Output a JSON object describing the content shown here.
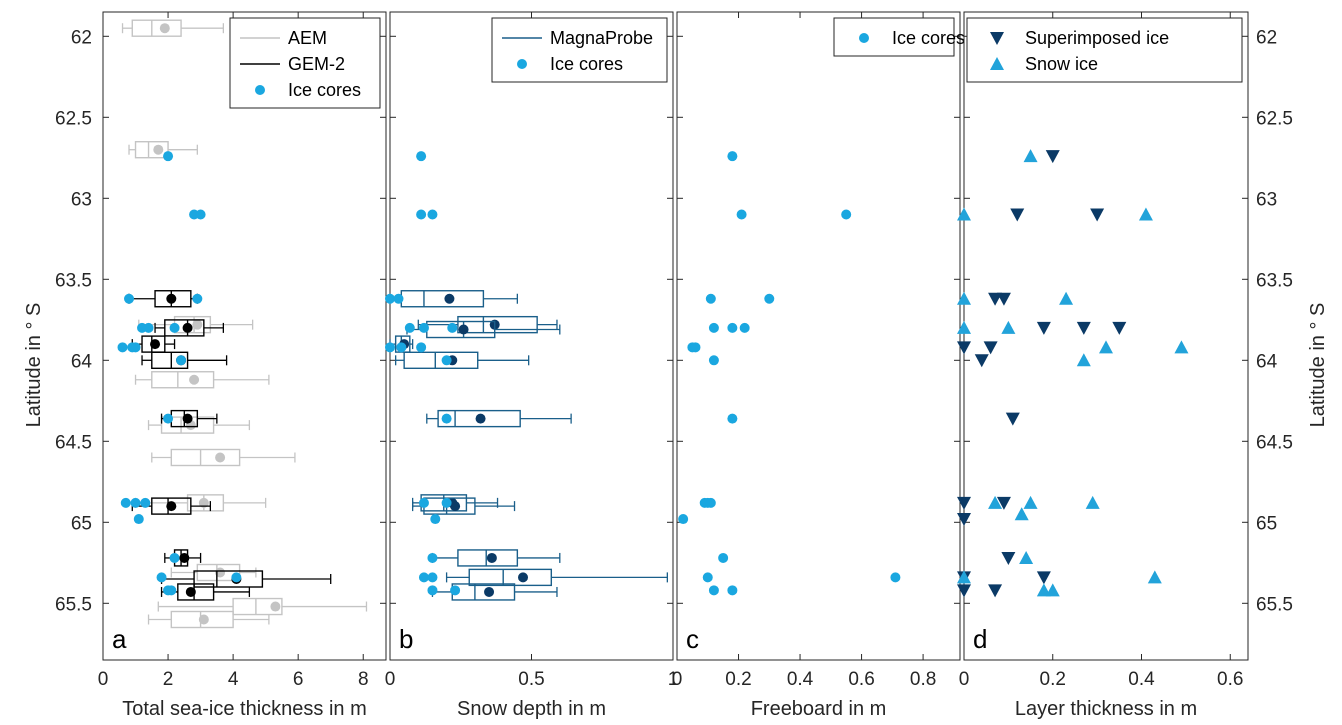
{
  "figure": {
    "ylabel": "Latitude in ° S",
    "yticks": [
      62,
      62.5,
      63,
      63.5,
      64,
      64.5,
      65,
      65.5
    ],
    "ylim": [
      61.85,
      65.85
    ],
    "y_reversed": true
  },
  "colors": {
    "aem": "#c4c4c4",
    "gem2": "#000000",
    "ice_cores": "#1aa7e0",
    "magnaprobe": "#1a5f8a",
    "magnaprobe_mean": "#0b3a66",
    "superimposed": "#0b3a66",
    "snow_ice": "#22a3da"
  },
  "chart_data": [
    {
      "panel": "a",
      "type": "box",
      "xlabel": "Total sea-ice thickness in m",
      "xlim": [
        0,
        8.7
      ],
      "xticks": [
        0,
        2,
        4,
        6,
        8
      ],
      "legend": [
        "AEM",
        "GEM-2",
        "Ice cores"
      ],
      "series": [
        {
          "name": "AEM",
          "boxes": [
            {
              "lat": 61.95,
              "whislo": 0.6,
              "q1": 0.9,
              "med": 1.5,
              "q3": 2.4,
              "whishi": 3.7,
              "mean": 1.9
            },
            {
              "lat": 62.7,
              "whislo": 0.8,
              "q1": 1.0,
              "med": 1.4,
              "q3": 2.0,
              "whishi": 2.9,
              "mean": 1.7
            },
            {
              "lat": 63.78,
              "whislo": 1.1,
              "q1": 2.2,
              "med": 2.8,
              "q3": 3.3,
              "whishi": 4.6,
              "mean": 2.9
            },
            {
              "lat": 64.12,
              "whislo": 1.0,
              "q1": 1.5,
              "med": 2.3,
              "q3": 3.4,
              "whishi": 5.1,
              "mean": 2.8
            },
            {
              "lat": 64.4,
              "whislo": 1.4,
              "q1": 1.8,
              "med": 2.4,
              "q3": 3.4,
              "whishi": 4.5,
              "mean": 2.7
            },
            {
              "lat": 64.6,
              "whislo": 1.5,
              "q1": 2.1,
              "med": 3.0,
              "q3": 4.2,
              "whishi": 5.9,
              "mean": 3.6
            },
            {
              "lat": 64.88,
              "whislo": 1.0,
              "q1": 2.6,
              "med": 3.1,
              "q3": 3.7,
              "whishi": 5.0,
              "mean": 3.1
            },
            {
              "lat": 65.31,
              "whislo": 2.1,
              "q1": 2.9,
              "med": 3.5,
              "q3": 4.2,
              "whishi": 4.7,
              "mean": 3.6
            },
            {
              "lat": 65.52,
              "whislo": 1.7,
              "q1": 4.0,
              "med": 4.7,
              "q3": 5.5,
              "whishi": 8.1,
              "mean": 5.3
            },
            {
              "lat": 65.6,
              "whislo": 1.4,
              "q1": 2.1,
              "med": 3.0,
              "q3": 4.0,
              "whishi": 5.1,
              "mean": 3.1
            }
          ]
        },
        {
          "name": "GEM-2",
          "boxes": [
            {
              "lat": 63.62,
              "whislo": 0.8,
              "q1": 1.6,
              "med": 2.1,
              "q3": 2.7,
              "whishi": 2.9,
              "mean": 2.1
            },
            {
              "lat": 63.8,
              "whislo": 1.6,
              "q1": 1.9,
              "med": 2.6,
              "q3": 3.1,
              "whishi": 3.7,
              "mean": 2.6
            },
            {
              "lat": 63.9,
              "whislo": 0.9,
              "q1": 1.2,
              "med": 1.5,
              "q3": 1.9,
              "whishi": 2.2,
              "mean": 1.6
            },
            {
              "lat": 64.0,
              "whislo": 1.2,
              "q1": 1.5,
              "med": 2.1,
              "q3": 2.6,
              "whishi": 3.8,
              "mean": 2.4
            },
            {
              "lat": 64.36,
              "whislo": 1.8,
              "q1": 2.1,
              "med": 2.5,
              "q3": 2.9,
              "whishi": 3.5,
              "mean": 2.6
            },
            {
              "lat": 64.9,
              "whislo": 0.9,
              "q1": 1.5,
              "med": 2.0,
              "q3": 2.7,
              "whishi": 3.3,
              "mean": 2.1
            },
            {
              "lat": 65.22,
              "whislo": 1.9,
              "q1": 2.2,
              "med": 2.4,
              "q3": 2.6,
              "whishi": 3.0,
              "mean": 2.5
            },
            {
              "lat": 65.35,
              "whislo": 1.8,
              "q1": 2.8,
              "med": 3.5,
              "q3": 4.9,
              "whishi": 7.0,
              "mean": 4.1
            },
            {
              "lat": 65.43,
              "whislo": 1.8,
              "q1": 2.3,
              "med": 2.8,
              "q3": 3.4,
              "whishi": 4.5,
              "mean": 2.7
            }
          ]
        },
        {
          "name": "Ice cores",
          "points": [
            [
              2.0,
              62.74
            ],
            [
              2.8,
              63.1
            ],
            [
              3.0,
              63.1
            ],
            [
              0.8,
              63.62
            ],
            [
              2.9,
              63.62
            ],
            [
              1.2,
              63.8
            ],
            [
              1.4,
              63.8
            ],
            [
              2.2,
              63.8
            ],
            [
              0.6,
              63.92
            ],
            [
              0.9,
              63.92
            ],
            [
              1.0,
              63.92
            ],
            [
              2.4,
              64.0
            ],
            [
              2.0,
              64.36
            ],
            [
              0.7,
              64.88
            ],
            [
              1.0,
              64.88
            ],
            [
              1.3,
              64.88
            ],
            [
              1.1,
              64.98
            ],
            [
              2.2,
              65.22
            ],
            [
              1.8,
              65.34
            ],
            [
              4.1,
              65.34
            ],
            [
              2.0,
              65.42
            ],
            [
              2.1,
              65.42
            ]
          ]
        }
      ]
    },
    {
      "panel": "b",
      "type": "box",
      "xlabel": "Snow depth in m",
      "xlim": [
        0,
        1.0
      ],
      "xticks": [
        0,
        0.5,
        1
      ],
      "xticklabels": [
        "0",
        "0.5",
        "1"
      ],
      "legend": [
        "MagnaProbe",
        "Ice cores"
      ],
      "series": [
        {
          "name": "MagnaProbe",
          "boxes": [
            {
              "lat": 63.62,
              "whislo": 0.0,
              "q1": 0.04,
              "med": 0.12,
              "q3": 0.33,
              "whishi": 0.45,
              "mean": 0.21
            },
            {
              "lat": 63.78,
              "whislo": 0.1,
              "q1": 0.24,
              "med": 0.33,
              "q3": 0.52,
              "whishi": 0.59,
              "mean": 0.37
            },
            {
              "lat": 63.81,
              "whislo": 0.06,
              "q1": 0.13,
              "med": 0.26,
              "q3": 0.37,
              "whishi": 0.6,
              "mean": 0.26
            },
            {
              "lat": 63.9,
              "whislo": 0.0,
              "q1": 0.02,
              "med": 0.04,
              "q3": 0.07,
              "whishi": 0.08,
              "mean": 0.05
            },
            {
              "lat": 64.0,
              "whislo": 0.02,
              "q1": 0.05,
              "med": 0.16,
              "q3": 0.31,
              "whishi": 0.49,
              "mean": 0.22
            },
            {
              "lat": 64.36,
              "whislo": 0.13,
              "q1": 0.17,
              "med": 0.23,
              "q3": 0.46,
              "whishi": 0.64,
              "mean": 0.32
            },
            {
              "lat": 64.88,
              "whislo": 0.08,
              "q1": 0.11,
              "med": 0.19,
              "q3": 0.27,
              "whishi": 0.38,
              "mean": 0.22
            },
            {
              "lat": 64.9,
              "whislo": 0.08,
              "q1": 0.12,
              "med": 0.2,
              "q3": 0.3,
              "whishi": 0.44,
              "mean": 0.23
            },
            {
              "lat": 65.22,
              "whislo": 0.15,
              "q1": 0.24,
              "med": 0.34,
              "q3": 0.45,
              "whishi": 0.6,
              "mean": 0.36
            },
            {
              "lat": 65.34,
              "whislo": 0.2,
              "q1": 0.28,
              "med": 0.4,
              "q3": 0.57,
              "whishi": 0.98,
              "mean": 0.47
            },
            {
              "lat": 65.43,
              "whislo": 0.15,
              "q1": 0.22,
              "med": 0.3,
              "q3": 0.44,
              "whishi": 0.59,
              "mean": 0.35
            }
          ]
        },
        {
          "name": "Ice cores",
          "points": [
            [
              0.11,
              62.74
            ],
            [
              0.11,
              63.1
            ],
            [
              0.15,
              63.1
            ],
            [
              0.0,
              63.62
            ],
            [
              0.03,
              63.62
            ],
            [
              0.07,
              63.8
            ],
            [
              0.12,
              63.8
            ],
            [
              0.22,
              63.8
            ],
            [
              0.0,
              63.92
            ],
            [
              0.04,
              63.92
            ],
            [
              0.11,
              63.92
            ],
            [
              0.2,
              64.0
            ],
            [
              0.2,
              64.36
            ],
            [
              0.12,
              64.88
            ],
            [
              0.2,
              64.88
            ],
            [
              0.16,
              64.98
            ],
            [
              0.15,
              65.22
            ],
            [
              0.12,
              65.34
            ],
            [
              0.15,
              65.34
            ],
            [
              0.15,
              65.42
            ],
            [
              0.23,
              65.42
            ]
          ]
        }
      ]
    },
    {
      "panel": "c",
      "type": "scatter",
      "xlabel": "Freeboard in m",
      "xlim": [
        0,
        0.92
      ],
      "xticks": [
        0,
        0.2,
        0.4,
        0.6,
        0.8
      ],
      "legend": [
        "Ice cores"
      ],
      "series": [
        {
          "name": "Ice cores",
          "points": [
            [
              0.18,
              62.74
            ],
            [
              0.21,
              63.1
            ],
            [
              0.55,
              63.1
            ],
            [
              0.11,
              63.62
            ],
            [
              0.3,
              63.62
            ],
            [
              0.12,
              63.8
            ],
            [
              0.18,
              63.8
            ],
            [
              0.22,
              63.8
            ],
            [
              0.05,
              63.92
            ],
            [
              0.06,
              63.92
            ],
            [
              0.12,
              64.0
            ],
            [
              0.18,
              64.36
            ],
            [
              0.09,
              64.88
            ],
            [
              0.1,
              64.88
            ],
            [
              0.11,
              64.88
            ],
            [
              0.02,
              64.98
            ],
            [
              0.15,
              65.22
            ],
            [
              0.1,
              65.34
            ],
            [
              0.71,
              65.34
            ],
            [
              0.12,
              65.42
            ],
            [
              0.18,
              65.42
            ]
          ]
        }
      ]
    },
    {
      "panel": "d",
      "type": "scatter",
      "xlabel": "Layer thickness in m",
      "xlim": [
        0,
        0.64
      ],
      "xticks": [
        0,
        0.2,
        0.4,
        0.6
      ],
      "legend": [
        "Superimposed ice",
        "Snow ice"
      ],
      "series": [
        {
          "name": "Superimposed ice",
          "marker": "triangle-down",
          "points": [
            [
              0.2,
              62.74
            ],
            [
              0.12,
              63.1
            ],
            [
              0.3,
              63.1
            ],
            [
              0.07,
              63.62
            ],
            [
              0.09,
              63.62
            ],
            [
              0.18,
              63.8
            ],
            [
              0.27,
              63.8
            ],
            [
              0.35,
              63.8
            ],
            [
              0.0,
              63.92
            ],
            [
              0.06,
              63.92
            ],
            [
              0.04,
              64.0
            ],
            [
              0.11,
              64.36
            ],
            [
              0.0,
              64.88
            ],
            [
              0.09,
              64.88
            ],
            [
              0.0,
              64.98
            ],
            [
              0.1,
              65.22
            ],
            [
              0.0,
              65.34
            ],
            [
              0.18,
              65.34
            ],
            [
              0.0,
              65.42
            ],
            [
              0.07,
              65.42
            ]
          ]
        },
        {
          "name": "Snow ice",
          "marker": "triangle-up",
          "points": [
            [
              0.15,
              62.74
            ],
            [
              0.0,
              63.1
            ],
            [
              0.41,
              63.1
            ],
            [
              0.0,
              63.62
            ],
            [
              0.23,
              63.62
            ],
            [
              0.0,
              63.8
            ],
            [
              0.1,
              63.8
            ],
            [
              0.32,
              63.92
            ],
            [
              0.49,
              63.92
            ],
            [
              0.27,
              64.0
            ],
            [
              0.07,
              64.88
            ],
            [
              0.15,
              64.88
            ],
            [
              0.29,
              64.88
            ],
            [
              0.13,
              64.95
            ],
            [
              0.14,
              65.22
            ],
            [
              0.0,
              65.34
            ],
            [
              0.43,
              65.34
            ],
            [
              0.18,
              65.42
            ],
            [
              0.2,
              65.42
            ]
          ]
        }
      ]
    }
  ]
}
